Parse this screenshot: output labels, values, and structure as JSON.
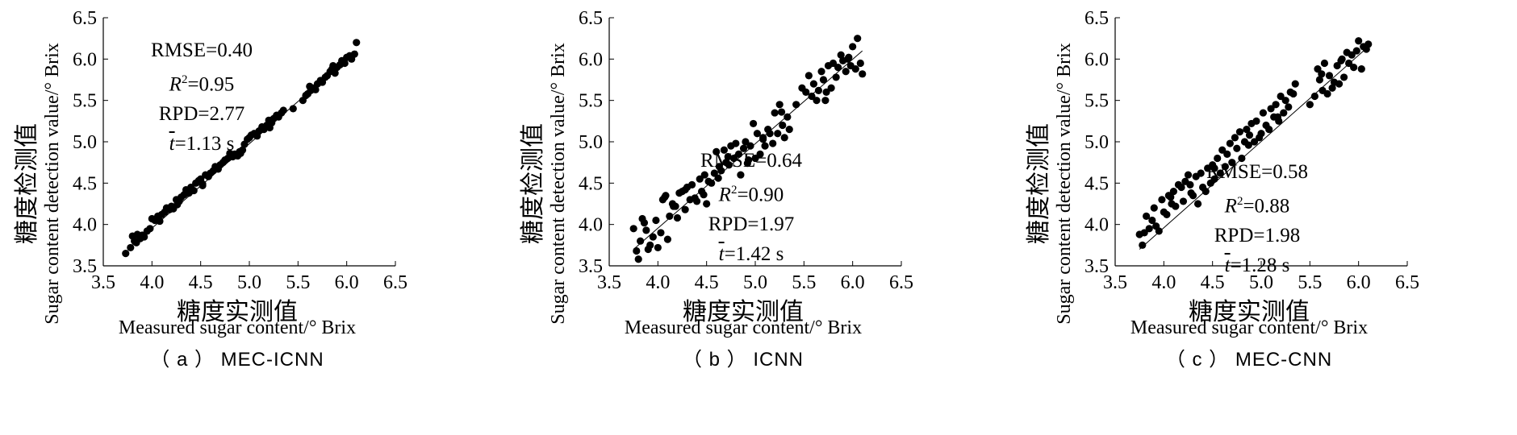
{
  "chart_data": [
    {
      "type": "scatter",
      "caption": "（ a ） MEC-ICNN",
      "ylabel_zh": "糖度检测值",
      "ylabel_en": "Sugar content detection value/° Brix",
      "xlabel_zh": "糖度实测值",
      "xlabel_en": "Measured sugar content/° Brix",
      "xlim": [
        3.5,
        6.5
      ],
      "ylim": [
        3.5,
        6.5
      ],
      "xticks": [
        "3.5",
        "4.0",
        "4.5",
        "5.0",
        "5.5",
        "6.0",
        "6.5"
      ],
      "yticks": [
        "3.5",
        "4.0",
        "4.5",
        "5.0",
        "5.5",
        "6.0",
        "6.5"
      ],
      "fit_line": [
        [
          3.75,
          3.7
        ],
        [
          6.1,
          6.1
        ]
      ],
      "stats": {
        "rmse": "RMSE=0.40",
        "r2_letter": "R",
        "r2_exp": "2",
        "r2_value": "=0.95",
        "rpd": "RPD=2.77",
        "t_letter": "t",
        "t_value": "=1.13 s"
      },
      "x": [
        3.73,
        3.78,
        3.8,
        3.82,
        3.85,
        3.88,
        3.9,
        3.92,
        3.95,
        3.98,
        4.0,
        4.03,
        4.06,
        4.08,
        4.1,
        4.13,
        4.15,
        4.18,
        4.2,
        4.22,
        4.25,
        4.28,
        4.3,
        4.33,
        4.35,
        4.38,
        4.4,
        4.43,
        4.45,
        4.48,
        4.5,
        4.52,
        4.55,
        4.58,
        4.6,
        4.63,
        4.65,
        4.68,
        4.7,
        4.73,
        4.75,
        4.78,
        4.8,
        4.83,
        4.85,
        4.88,
        4.9,
        4.93,
        4.95,
        4.98,
        5.0,
        5.02,
        5.05,
        5.08,
        5.1,
        5.13,
        5.15,
        5.18,
        5.2,
        5.23,
        5.25,
        5.28,
        5.3,
        5.33,
        5.35,
        5.45,
        5.55,
        5.58,
        5.6,
        5.63,
        5.65,
        5.68,
        5.7,
        5.73,
        5.75,
        5.78,
        5.8,
        5.83,
        5.85,
        5.88,
        5.9,
        5.93,
        5.95,
        5.98,
        6.0,
        6.03,
        6.05,
        6.08,
        6.1,
        3.84,
        4.26,
        4.52,
        4.91,
        5.21,
        5.62,
        5.86
      ],
      "y": [
        3.65,
        3.72,
        3.86,
        3.8,
        3.88,
        3.83,
        3.87,
        3.85,
        3.92,
        3.95,
        4.07,
        4.05,
        4.1,
        4.04,
        4.12,
        4.15,
        4.2,
        4.18,
        4.22,
        4.19,
        4.3,
        4.28,
        4.33,
        4.36,
        4.42,
        4.38,
        4.45,
        4.41,
        4.5,
        4.53,
        4.55,
        4.49,
        4.6,
        4.58,
        4.62,
        4.65,
        4.7,
        4.67,
        4.72,
        4.75,
        4.78,
        4.8,
        4.86,
        4.82,
        4.85,
        4.83,
        4.88,
        4.9,
        4.97,
        5.03,
        5.05,
        5.08,
        5.1,
        5.07,
        5.13,
        5.18,
        5.15,
        5.2,
        5.26,
        5.23,
        5.28,
        5.32,
        5.3,
        5.35,
        5.38,
        5.4,
        5.5,
        5.56,
        5.58,
        5.62,
        5.65,
        5.63,
        5.7,
        5.74,
        5.72,
        5.78,
        5.8,
        5.85,
        5.88,
        5.83,
        5.9,
        5.93,
        5.98,
        5.95,
        6.02,
        6.04,
        6.0,
        6.06,
        6.2,
        3.78,
        4.24,
        4.47,
        4.86,
        5.17,
        5.67,
        5.92
      ]
    },
    {
      "type": "scatter",
      "caption": "（ b ） ICNN",
      "ylabel_zh": "糖度检测值",
      "ylabel_en": "Sugar content detection value/° Brix",
      "xlabel_zh": "糖度实测值",
      "xlabel_en": "Measured sugar content/° Brix",
      "xlim": [
        3.5,
        6.5
      ],
      "ylim": [
        3.5,
        6.5
      ],
      "xticks": [
        "3.5",
        "4.0",
        "4.5",
        "5.0",
        "5.5",
        "6.0",
        "6.5"
      ],
      "yticks": [
        "3.5",
        "4.0",
        "4.5",
        "5.0",
        "5.5",
        "6.0",
        "6.5"
      ],
      "fit_line": [
        [
          3.75,
          3.7
        ],
        [
          6.1,
          6.1
        ]
      ],
      "stats": {
        "rmse": "RMSE=0.64",
        "r2_letter": "R",
        "r2_exp": "2",
        "r2_value": "=0.90",
        "rpd": "RPD=1.97",
        "t_letter": "t",
        "t_value": "=1.42 s"
      },
      "x": [
        3.75,
        3.78,
        3.8,
        3.82,
        3.84,
        3.86,
        3.9,
        3.92,
        3.95,
        3.98,
        4.0,
        4.03,
        4.05,
        4.08,
        4.1,
        4.12,
        4.15,
        4.18,
        4.2,
        4.22,
        4.25,
        4.28,
        4.3,
        4.33,
        4.35,
        4.38,
        4.4,
        4.43,
        4.45,
        4.48,
        4.5,
        4.52,
        4.55,
        4.58,
        4.6,
        4.63,
        4.65,
        4.68,
        4.7,
        4.73,
        4.75,
        4.78,
        4.8,
        4.83,
        4.85,
        4.88,
        4.9,
        4.93,
        4.95,
        4.98,
        5.0,
        5.02,
        5.05,
        5.08,
        5.1,
        5.13,
        5.15,
        5.18,
        5.2,
        5.23,
        5.25,
        5.28,
        5.3,
        5.33,
        5.35,
        5.48,
        5.55,
        5.58,
        5.6,
        5.63,
        5.65,
        5.68,
        5.7,
        5.73,
        5.75,
        5.78,
        5.8,
        5.83,
        5.85,
        5.88,
        5.9,
        5.93,
        5.95,
        5.98,
        6.0,
        6.03,
        6.05,
        6.08,
        6.1,
        3.88,
        4.07,
        4.28,
        4.47,
        4.62,
        4.92,
        5.08,
        5.27,
        5.52,
        5.72,
        5.96,
        4.16,
        4.72,
        5.42
      ],
      "y": [
        3.95,
        3.68,
        3.58,
        3.8,
        4.07,
        4.02,
        3.7,
        3.75,
        3.85,
        4.05,
        3.72,
        3.9,
        4.3,
        4.35,
        3.82,
        4.1,
        4.25,
        4.22,
        4.08,
        4.38,
        4.4,
        4.18,
        4.45,
        4.3,
        4.48,
        4.32,
        4.28,
        4.55,
        4.4,
        4.6,
        4.25,
        4.52,
        4.5,
        4.62,
        4.88,
        4.7,
        4.65,
        4.9,
        4.75,
        4.72,
        4.95,
        4.8,
        4.98,
        4.85,
        4.6,
        4.92,
        5.0,
        4.78,
        4.95,
        5.22,
        4.8,
        5.1,
        4.85,
        5.05,
        4.95,
        5.15,
        5.1,
        4.98,
        5.35,
        5.1,
        5.45,
        5.2,
        5.05,
        5.3,
        5.15,
        5.65,
        5.8,
        5.55,
        5.7,
        5.5,
        5.62,
        5.85,
        5.75,
        5.6,
        5.92,
        5.65,
        5.95,
        5.78,
        5.9,
        6.05,
        5.98,
        5.85,
        6.0,
        5.92,
        6.15,
        5.88,
        6.25,
        5.95,
        5.82,
        3.93,
        4.33,
        4.42,
        4.36,
        4.56,
        4.74,
        5.03,
        5.36,
        5.6,
        5.5,
        6.02,
        4.22,
        4.82,
        5.45
      ]
    },
    {
      "type": "scatter",
      "caption": "（ c ） MEC-CNN",
      "ylabel_zh": "糖度检测值",
      "ylabel_en": "Sugar content detection value/° Brix",
      "xlabel_zh": "糖度实测值",
      "xlabel_en": "Measured sugar content/° Brix",
      "xlim": [
        3.5,
        6.5
      ],
      "ylim": [
        3.5,
        6.5
      ],
      "xticks": [
        "3.5",
        "4.0",
        "4.5",
        "5.0",
        "5.5",
        "6.0",
        "6.5"
      ],
      "yticks": [
        "3.5",
        "4.0",
        "4.5",
        "5.0",
        "5.5",
        "6.0",
        "6.5"
      ],
      "fit_line": [
        [
          3.75,
          3.7
        ],
        [
          6.1,
          6.15
        ]
      ],
      "stats": {
        "rmse": "RMSE=0.58",
        "r2_letter": "R",
        "r2_exp": "2",
        "r2_value": "=0.88",
        "rpd": "RPD=1.98",
        "t_letter": "t",
        "t_value": "=1.28 s"
      },
      "x": [
        3.75,
        3.78,
        3.8,
        3.82,
        3.85,
        3.88,
        3.9,
        3.92,
        3.95,
        3.98,
        4.0,
        4.03,
        4.05,
        4.08,
        4.1,
        4.12,
        4.15,
        4.18,
        4.2,
        4.22,
        4.25,
        4.28,
        4.3,
        4.33,
        4.35,
        4.38,
        4.4,
        4.43,
        4.45,
        4.48,
        4.5,
        4.52,
        4.55,
        4.58,
        4.6,
        4.63,
        4.65,
        4.68,
        4.7,
        4.73,
        4.75,
        4.78,
        4.8,
        4.83,
        4.85,
        4.88,
        4.9,
        4.93,
        4.95,
        4.98,
        5.0,
        5.02,
        5.05,
        5.08,
        5.1,
        5.13,
        5.15,
        5.18,
        5.2,
        5.23,
        5.25,
        5.28,
        5.3,
        5.33,
        5.35,
        5.5,
        5.55,
        5.58,
        5.6,
        5.63,
        5.65,
        5.68,
        5.7,
        5.73,
        5.75,
        5.78,
        5.8,
        5.83,
        5.85,
        5.88,
        5.9,
        5.93,
        5.95,
        5.98,
        6.0,
        6.03,
        6.05,
        6.08,
        6.1,
        4.07,
        4.27,
        4.52,
        4.87,
        5.17,
        5.62,
        5.82
      ],
      "y": [
        3.88,
        3.75,
        3.9,
        4.1,
        3.95,
        4.05,
        4.2,
        3.98,
        3.92,
        4.3,
        4.15,
        4.12,
        4.35,
        4.25,
        4.4,
        4.22,
        4.48,
        4.45,
        4.28,
        4.52,
        4.6,
        4.38,
        4.35,
        4.58,
        4.25,
        4.62,
        4.45,
        4.4,
        4.68,
        4.5,
        4.72,
        4.55,
        4.8,
        4.62,
        4.9,
        4.7,
        4.85,
        4.98,
        4.75,
        5.05,
        4.92,
        5.12,
        4.8,
        5.0,
        5.15,
        5.08,
        5.22,
        5.0,
        5.25,
        5.05,
        5.1,
        5.35,
        5.2,
        5.15,
        5.4,
        5.3,
        5.45,
        5.25,
        5.55,
        5.35,
        5.5,
        5.42,
        5.6,
        5.58,
        5.7,
        5.45,
        5.55,
        5.88,
        5.75,
        5.62,
        5.95,
        5.58,
        5.8,
        5.65,
        5.72,
        5.92,
        5.7,
        6.0,
        5.78,
        6.08,
        5.95,
        6.05,
        5.9,
        6.1,
        6.22,
        5.88,
        6.15,
        6.12,
        6.18,
        4.33,
        4.48,
        4.68,
        4.96,
        5.3,
        5.82,
        5.98
      ]
    }
  ]
}
